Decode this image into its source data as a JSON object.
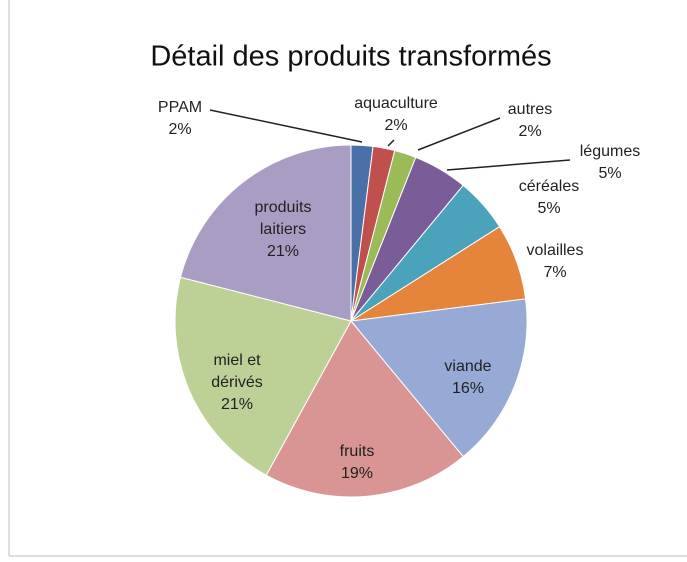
{
  "chart_data": {
    "type": "pie",
    "title": "Détail des produits transformés",
    "categories": [
      "PPAM",
      "aquaculture",
      "autres",
      "légumes",
      "céréales",
      "volailles",
      "viande",
      "fruits",
      "miel et dérivés",
      "produits laitiers"
    ],
    "values": [
      2,
      2,
      2,
      5,
      5,
      7,
      16,
      19,
      21,
      21
    ],
    "value_labels": [
      "2%",
      "2%",
      "2%",
      "5%",
      "5%",
      "7%",
      "16%",
      "19%",
      "21%",
      "21%"
    ],
    "colors": [
      "#4a70a8",
      "#c0504d",
      "#9bbb59",
      "#7a5c98",
      "#4aa3bb",
      "#e5843b",
      "#96aad5",
      "#d99594",
      "#bdd196",
      "#aa9dc3"
    ]
  }
}
